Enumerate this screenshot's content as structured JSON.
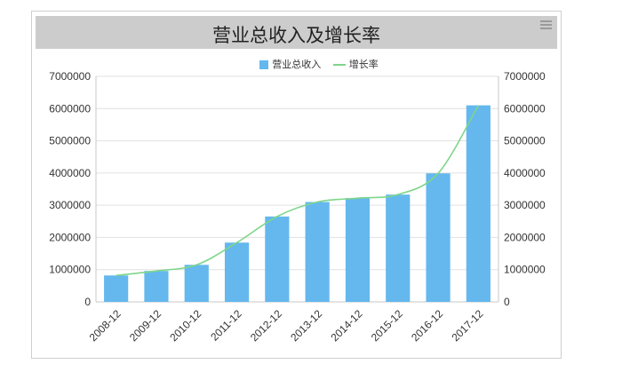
{
  "chart_data": {
    "type": "bar",
    "title": "营业总收入及增长率",
    "categories": [
      "2008-12",
      "2009-12",
      "2010-12",
      "2011-12",
      "2012-12",
      "2013-12",
      "2014-12",
      "2015-12",
      "2016-12",
      "2017-12"
    ],
    "series": [
      {
        "name": "营业总收入",
        "type": "bar",
        "color": "#64b8ee",
        "values": [
          820000,
          960000,
          1150000,
          1840000,
          2650000,
          3100000,
          3220000,
          3330000,
          3990000,
          6100000
        ]
      },
      {
        "name": "增长率",
        "type": "line",
        "color": "#7ed68a",
        "values": [
          820000,
          960000,
          1150000,
          1840000,
          2650000,
          3100000,
          3220000,
          3330000,
          3990000,
          6100000
        ]
      }
    ],
    "y_ticks": [
      "0",
      "1000000",
      "2000000",
      "3000000",
      "4000000",
      "5000000",
      "6000000",
      "7000000"
    ],
    "ylim": [
      0,
      7000000
    ],
    "y2lim": [
      0,
      7000000
    ],
    "grid": true,
    "legend_position": "top-center"
  }
}
